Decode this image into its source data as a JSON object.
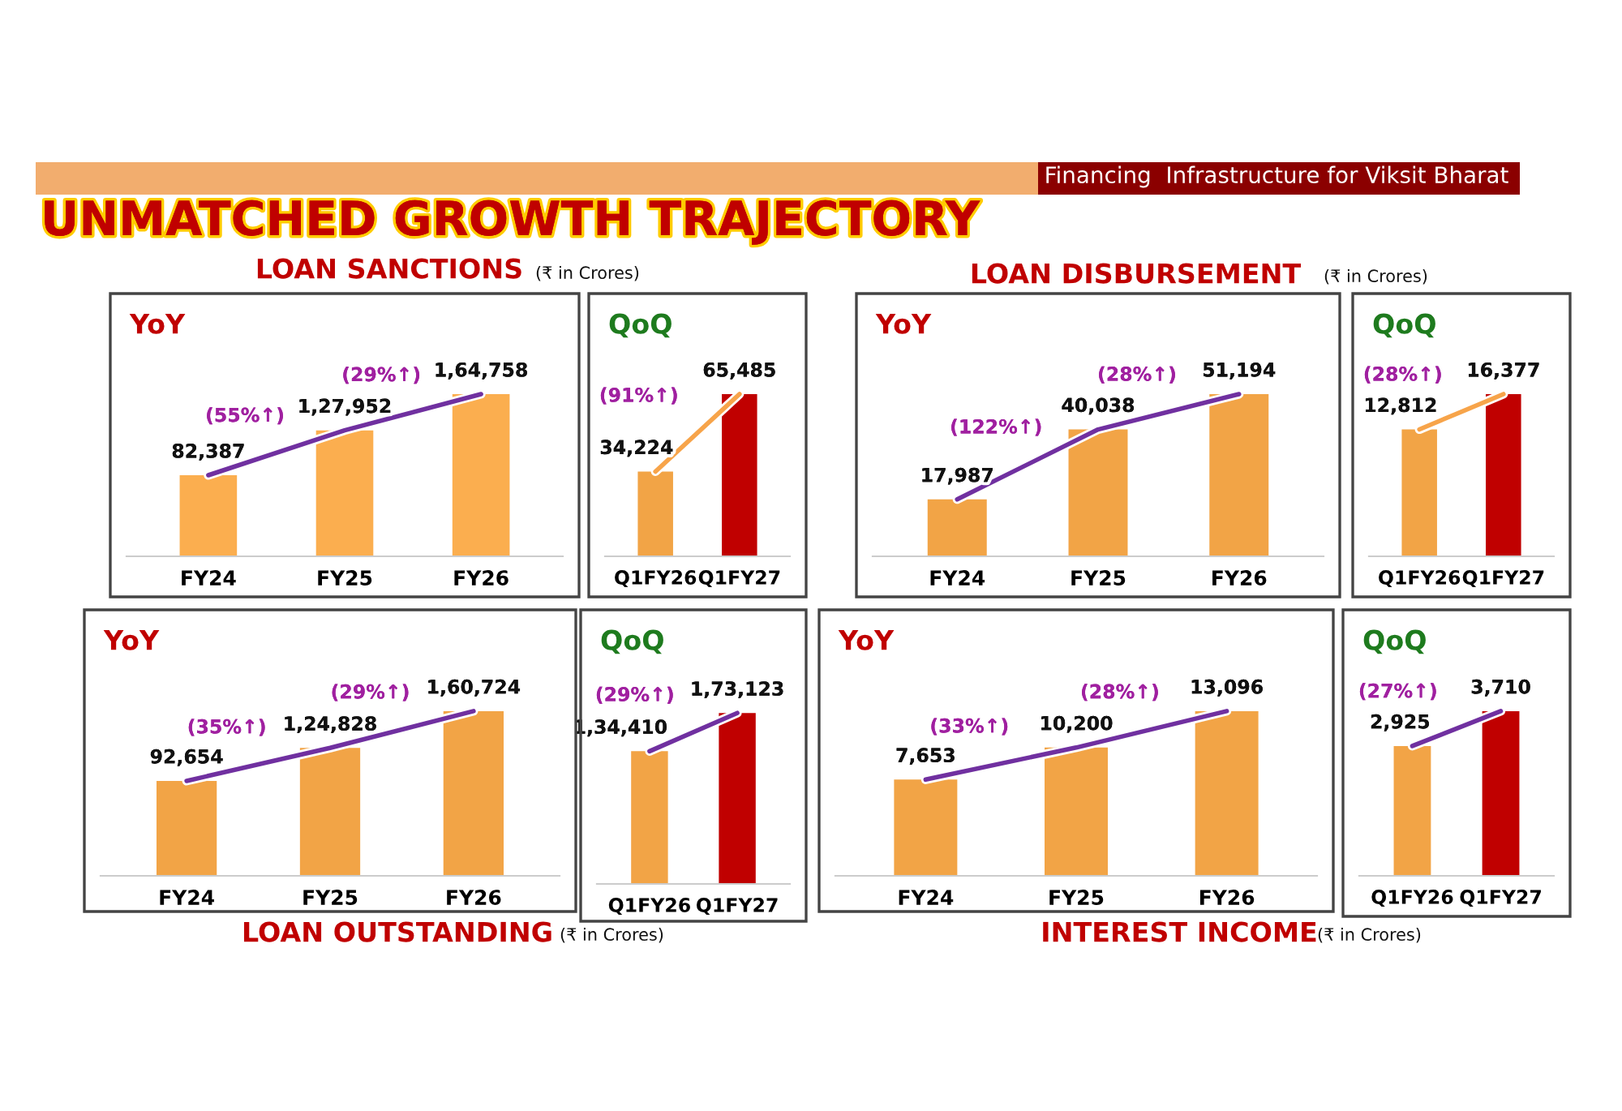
{
  "chart_data": [
    {
      "type": "bar",
      "title": "YoY",
      "categories": [
        "FY24",
        "FY25",
        "FY26"
      ],
      "series": [
        {
          "colors": [
            "#fbae4f",
            "#fbae4f",
            "#fbae4f"
          ],
          "values": [
            82387,
            127952,
            164758
          ],
          "value_labels": [
            "82,387",
            "1,27,952",
            "1,64,758"
          ]
        },
        {
          "type": "line",
          "color": "#7030a0",
          "values": [
            82387,
            127952,
            164758
          ]
        }
      ],
      "annotations": [
        "(55%↑)",
        "(29%↑)",
        "Financing  Infrastructure for Viksit Bharat",
        "UNMATCHED GROWTH TRAJECTORY",
        "LOAN SANCTIONS",
        "(₹ in Crores)"
      ]
    },
    {
      "type": "bar",
      "title": "QoQ",
      "categories": [
        "Q1FY26",
        "Q1FY27"
      ],
      "series": [
        {
          "colors": [
            "#f2a446",
            "#c00000"
          ],
          "values": [
            34224,
            65485
          ],
          "value_labels": [
            "34,224",
            "65,485"
          ]
        },
        {
          "type": "line",
          "color": "#f7a44a",
          "values": [
            34224,
            65485
          ]
        }
      ],
      "annotations": [
        "(91%↑)"
      ]
    },
    {
      "type": "bar",
      "title": "YoY",
      "categories": [
        "FY24",
        "FY25",
        "FY26"
      ],
      "series": [
        {
          "colors": [
            "#f2a446",
            "#f2a446",
            "#f2a446"
          ],
          "values": [
            17987,
            40038,
            51194
          ],
          "value_labels": [
            "17,987",
            "40,038",
            "51,194"
          ]
        },
        {
          "type": "line",
          "color": "#7030a0",
          "values": [
            17987,
            40038,
            51194
          ]
        }
      ],
      "annotations": [
        "(122%↑)",
        "(28%↑)",
        "LOAN DISBURSEMENT",
        "(₹ in Crores)"
      ]
    },
    {
      "type": "bar",
      "title": "QoQ",
      "categories": [
        "Q1FY26",
        "Q1FY27"
      ],
      "series": [
        {
          "colors": [
            "#f2a446",
            "#c00000"
          ],
          "values": [
            12812,
            16377
          ],
          "value_labels": [
            "12,812",
            "16,377"
          ]
        },
        {
          "type": "line",
          "color": "#f7a44a",
          "values": [
            12812,
            16377
          ]
        }
      ],
      "annotations": [
        "(28%↑)"
      ]
    },
    {
      "type": "bar",
      "title": "YoY",
      "categories": [
        "FY24",
        "FY25",
        "FY26"
      ],
      "series": [
        {
          "colors": [
            "#f2a446",
            "#f2a446",
            "#f2a446"
          ],
          "values": [
            92654,
            124828,
            160724
          ],
          "value_labels": [
            "92,654",
            "1,24,828",
            "1,60,724"
          ]
        },
        {
          "type": "line",
          "color": "#7030a0",
          "values": [
            92654,
            124828,
            160724
          ]
        }
      ],
      "annotations": [
        "(35%↑)",
        "(29%↑)",
        "LOAN OUTSTANDING",
        "(₹ in Crores)"
      ]
    },
    {
      "type": "bar",
      "title": "QoQ",
      "categories": [
        "Q1FY26",
        "Q1FY27"
      ],
      "series": [
        {
          "colors": [
            "#f2a446",
            "#c00000"
          ],
          "values": [
            134410,
            173123
          ],
          "value_labels": [
            "1,34,410",
            "1,73,123"
          ]
        },
        {
          "type": "line",
          "color": "#7030a0",
          "values": [
            134410,
            173123
          ]
        }
      ],
      "annotations": [
        "(29%↑)"
      ]
    },
    {
      "type": "bar",
      "title": "YoY",
      "categories": [
        "FY24",
        "FY25",
        "FY26"
      ],
      "series": [
        {
          "colors": [
            "#f2a446",
            "#f2a446",
            "#f2a446"
          ],
          "values": [
            7653,
            10200,
            13096
          ],
          "value_labels": [
            "7,653",
            "10,200",
            "13,096"
          ]
        },
        {
          "type": "line",
          "color": "#7030a0",
          "values": [
            7653,
            10200,
            13096
          ]
        }
      ],
      "annotations": [
        "(33%↑)",
        "(28%↑)",
        "INTEREST INCOME",
        "(₹ in Crores)"
      ]
    },
    {
      "type": "bar",
      "title": "QoQ",
      "categories": [
        "Q1FY26",
        "Q1FY27"
      ],
      "series": [
        {
          "colors": [
            "#f2a446",
            "#c00000"
          ],
          "values": [
            2925,
            3710
          ],
          "value_labels": [
            "2,925",
            "3,710"
          ]
        },
        {
          "type": "line",
          "color": "#7030a0",
          "values": [
            2925,
            3710
          ]
        }
      ],
      "annotations": [
        "(27%↑)"
      ]
    }
  ]
}
